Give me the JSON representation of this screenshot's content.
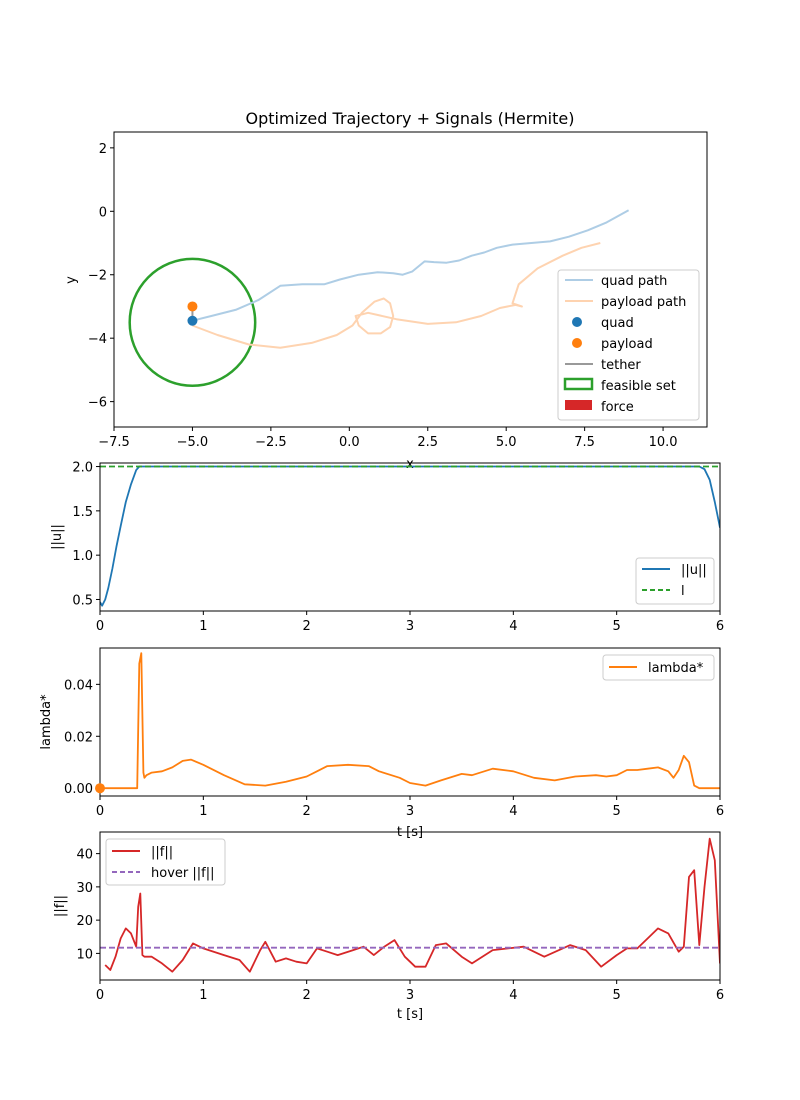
{
  "chart_data": [
    {
      "type": "line",
      "title": "Optimized Trajectory + Signals (Hermite)",
      "xlabel": "x",
      "ylabel": "y",
      "xlim": [
        -7.5,
        11.4
      ],
      "ylim": [
        -6.8,
        2.5
      ],
      "xticks": [
        -7.5,
        -5.0,
        -2.5,
        0.0,
        2.5,
        5.0,
        7.5,
        10.0
      ],
      "xtick_labels": [
        "−7.5",
        "−5.0",
        "−2.5",
        "0.0",
        "2.5",
        "5.0",
        "7.5",
        "10.0"
      ],
      "yticks": [
        2,
        0,
        -2,
        -4,
        -6
      ],
      "ytick_labels": [
        "2",
        "0",
        "−2",
        "−4",
        "−6"
      ],
      "legend_position": "lower-right",
      "series": [
        {
          "name": "quad path",
          "color": "#aecde5",
          "x": [
            -5.0,
            -4.4,
            -3.6,
            -2.9,
            -2.2,
            -1.5,
            -0.8,
            -0.3,
            0.3,
            0.9,
            1.4,
            1.7,
            2.0,
            2.4,
            2.7,
            3.1,
            3.5,
            3.9,
            4.3,
            4.7,
            5.2,
            5.8,
            6.4,
            7.0,
            7.6,
            8.2,
            8.9
          ],
          "y": [
            -3.45,
            -3.3,
            -3.1,
            -2.8,
            -2.35,
            -2.3,
            -2.3,
            -2.15,
            -2.0,
            -1.92,
            -1.95,
            -2.0,
            -1.9,
            -1.58,
            -1.6,
            -1.62,
            -1.55,
            -1.4,
            -1.3,
            -1.15,
            -1.05,
            -1.0,
            -0.95,
            -0.8,
            -0.6,
            -0.35,
            0.03
          ]
        },
        {
          "name": "payload path",
          "color": "#fed3b0",
          "x": [
            -5.0,
            -4.2,
            -3.2,
            -2.2,
            -1.2,
            -0.4,
            0.1,
            0.4,
            0.8,
            1.1,
            1.3,
            1.4,
            1.3,
            1.0,
            0.6,
            0.3,
            0.2,
            0.6,
            1.5,
            2.5,
            3.4,
            4.2,
            4.8,
            5.3,
            5.5,
            5.2,
            5.4,
            6.0,
            6.8,
            7.4,
            8.0
          ],
          "y": [
            -3.6,
            -3.9,
            -4.2,
            -4.3,
            -4.15,
            -3.9,
            -3.6,
            -3.2,
            -2.85,
            -2.75,
            -2.9,
            -3.3,
            -3.65,
            -3.85,
            -3.85,
            -3.6,
            -3.3,
            -3.2,
            -3.4,
            -3.55,
            -3.5,
            -3.3,
            -3.05,
            -2.95,
            -3.0,
            -2.9,
            -2.3,
            -1.8,
            -1.4,
            -1.15,
            -1.0
          ]
        }
      ],
      "points": [
        {
          "name": "quad",
          "color": "#1f77b4",
          "x": -5.0,
          "y": -3.45
        },
        {
          "name": "payload",
          "color": "#ff7f0e",
          "x": -5.0,
          "y": -3.0
        }
      ],
      "tether": {
        "name": "tether",
        "color": "#999999",
        "x": [
          -5.0,
          -5.0
        ],
        "y": [
          -3.45,
          -3.0
        ]
      },
      "feasible_set": {
        "name": "feasible set",
        "color": "#2ca02c",
        "center": [
          -5.0,
          -3.5
        ],
        "radius": 2.0
      },
      "force": {
        "name": "force",
        "color": "#d62728"
      }
    },
    {
      "type": "line",
      "xlabel": "",
      "ylabel": "||u||",
      "xlim": [
        0,
        6
      ],
      "ylim": [
        0.37,
        2.04
      ],
      "xticks": [
        0,
        1,
        2,
        3,
        4,
        5,
        6
      ],
      "xtick_labels": [
        "0",
        "1",
        "2",
        "3",
        "4",
        "5",
        "6"
      ],
      "yticks": [
        0.5,
        1.0,
        1.5,
        2.0
      ],
      "ytick_labels": [
        "0.5",
        "1.0",
        "1.5",
        "2.0"
      ],
      "legend_position": "lower-right",
      "series": [
        {
          "name": "||u||",
          "color": "#1f77b4",
          "x": [
            0,
            0.02,
            0.05,
            0.08,
            0.12,
            0.16,
            0.2,
            0.25,
            0.3,
            0.35,
            0.38,
            0.4,
            1.0,
            2.0,
            3.0,
            4.0,
            5.0,
            5.8,
            5.85,
            5.9,
            5.95,
            6.0
          ],
          "y": [
            0.47,
            0.43,
            0.5,
            0.63,
            0.85,
            1.1,
            1.33,
            1.6,
            1.8,
            1.96,
            2.0,
            2.0,
            2.0,
            2.0,
            2.0,
            2.0,
            2.0,
            2.0,
            1.97,
            1.85,
            1.6,
            1.31
          ]
        },
        {
          "name": "l",
          "color": "#2ca02c",
          "dashed": true,
          "x": [
            0,
            6
          ],
          "y": [
            2.0,
            2.0
          ]
        }
      ]
    },
    {
      "type": "line",
      "xlabel": "t [s]",
      "ylabel": "lambda*",
      "xlim": [
        0,
        6
      ],
      "ylim": [
        -0.003,
        0.054
      ],
      "xticks": [
        0,
        1,
        2,
        3,
        4,
        5,
        6
      ],
      "xtick_labels": [
        "0",
        "1",
        "2",
        "3",
        "4",
        "5",
        "6"
      ],
      "yticks": [
        0.0,
        0.02,
        0.04
      ],
      "ytick_labels": [
        "0.00",
        "0.02",
        "0.04"
      ],
      "legend_position": "upper-right",
      "series": [
        {
          "name": "lambda*",
          "color": "#ff7f0e",
          "x": [
            0,
            0.36,
            0.38,
            0.4,
            0.42,
            0.43,
            0.45,
            0.5,
            0.6,
            0.7,
            0.8,
            0.88,
            1.0,
            1.2,
            1.4,
            1.6,
            1.8,
            2.0,
            2.1,
            2.2,
            2.4,
            2.6,
            2.7,
            2.9,
            3.0,
            3.15,
            3.3,
            3.5,
            3.6,
            3.8,
            4.0,
            4.2,
            4.4,
            4.6,
            4.8,
            4.9,
            5.0,
            5.1,
            5.2,
            5.3,
            5.4,
            5.5,
            5.55,
            5.6,
            5.65,
            5.7,
            5.75,
            5.8,
            6.0
          ],
          "y": [
            0.0,
            0.0,
            0.048,
            0.052,
            0.006,
            0.004,
            0.005,
            0.006,
            0.0065,
            0.008,
            0.0105,
            0.011,
            0.009,
            0.005,
            0.0015,
            0.001,
            0.0025,
            0.0045,
            0.0065,
            0.0085,
            0.009,
            0.0085,
            0.0065,
            0.004,
            0.002,
            0.001,
            0.003,
            0.0055,
            0.005,
            0.0075,
            0.0065,
            0.004,
            0.003,
            0.0045,
            0.005,
            0.0045,
            0.005,
            0.007,
            0.007,
            0.0075,
            0.008,
            0.0065,
            0.004,
            0.007,
            0.0125,
            0.01,
            0.001,
            0.0,
            0.0
          ]
        }
      ],
      "points": [
        {
          "name": "lambda-start-marker",
          "color": "#ff7f0e",
          "x": 0,
          "y": 0.0
        }
      ]
    },
    {
      "type": "line",
      "xlabel": "t [s]",
      "ylabel": "||f||",
      "xlim": [
        0,
        6
      ],
      "ylim": [
        2.0,
        46.5
      ],
      "xticks": [
        0,
        1,
        2,
        3,
        4,
        5,
        6
      ],
      "xtick_labels": [
        "0",
        "1",
        "2",
        "3",
        "4",
        "5",
        "6"
      ],
      "yticks": [
        10,
        20,
        30,
        40
      ],
      "ytick_labels": [
        "10",
        "20",
        "30",
        "40"
      ],
      "legend_position": "upper-left",
      "series": [
        {
          "name": "||f||",
          "color": "#d62728",
          "x": [
            0.05,
            0.1,
            0.15,
            0.2,
            0.25,
            0.3,
            0.35,
            0.37,
            0.39,
            0.41,
            0.43,
            0.5,
            0.6,
            0.7,
            0.8,
            0.9,
            1.0,
            1.2,
            1.35,
            1.45,
            1.55,
            1.6,
            1.7,
            1.8,
            1.9,
            2.0,
            2.1,
            2.2,
            2.3,
            2.45,
            2.55,
            2.65,
            2.75,
            2.85,
            2.95,
            3.05,
            3.15,
            3.25,
            3.35,
            3.5,
            3.6,
            3.8,
            3.95,
            4.1,
            4.3,
            4.55,
            4.7,
            4.85,
            5.0,
            5.1,
            5.2,
            5.3,
            5.4,
            5.5,
            5.6,
            5.65,
            5.7,
            5.75,
            5.8,
            5.85,
            5.9,
            5.95,
            6.0
          ],
          "y": [
            6.5,
            5.0,
            9.0,
            14.5,
            17.5,
            16.0,
            12.0,
            24.0,
            28.0,
            9.5,
            9.0,
            9.0,
            7.0,
            4.5,
            8.0,
            13.0,
            11.5,
            9.5,
            8.0,
            4.5,
            11.0,
            13.5,
            7.5,
            8.5,
            7.5,
            7.0,
            11.5,
            10.5,
            9.5,
            11.0,
            12.0,
            9.5,
            12.0,
            14.0,
            9.0,
            6.0,
            6.0,
            12.5,
            13.0,
            9.0,
            7.0,
            11.0,
            11.5,
            12.0,
            9.0,
            12.5,
            11.0,
            6.0,
            9.5,
            11.5,
            11.5,
            14.5,
            17.5,
            16.0,
            10.5,
            12.0,
            33.0,
            35.0,
            12.5,
            30.0,
            44.5,
            38.0,
            7.0
          ]
        },
        {
          "name": "hover ||f||",
          "color": "#9467bd",
          "dashed": true,
          "x": [
            0,
            6
          ],
          "y": [
            11.7,
            11.7
          ]
        }
      ]
    }
  ]
}
